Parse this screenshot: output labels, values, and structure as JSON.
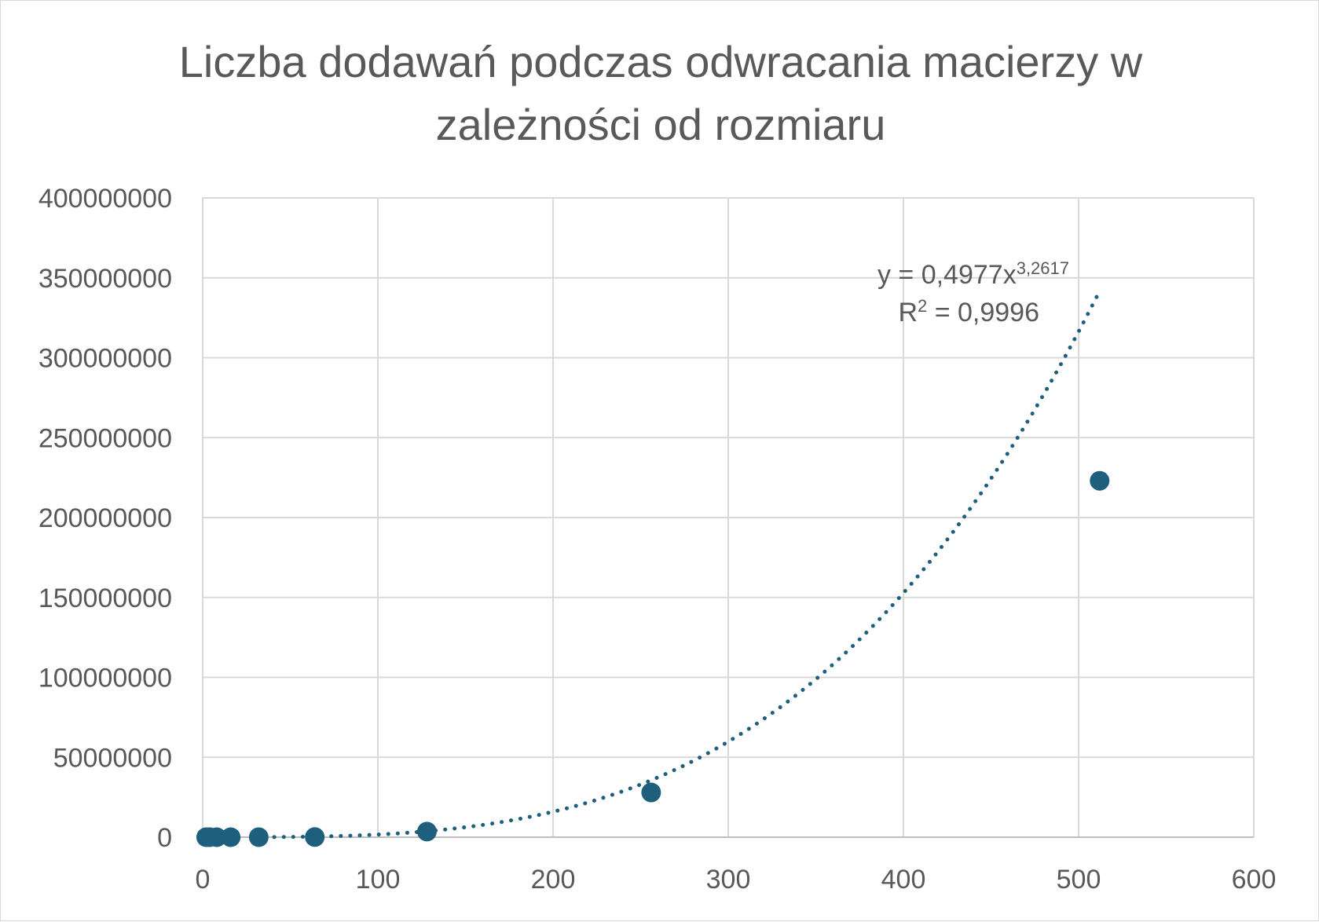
{
  "chart_data": {
    "type": "scatter",
    "title": "Liczba dodawań podczas odwracania macierzy w zależności od rozmiaru",
    "xlabel": "",
    "ylabel": "",
    "xlim": [
      0,
      600
    ],
    "ylim": [
      0,
      400000000
    ],
    "x_ticks": [
      "0",
      "100",
      "200",
      "300",
      "400",
      "500",
      "600"
    ],
    "y_ticks": [
      "0",
      "50000000",
      "100000000",
      "150000000",
      "200000000",
      "250000000",
      "300000000",
      "350000000",
      "400000000"
    ],
    "grid": true,
    "legend": "none",
    "series": [
      {
        "x": [
          2,
          4,
          8,
          16,
          32,
          64,
          128,
          256,
          512
        ],
        "y": [
          0,
          10,
          100,
          1000,
          10000,
          100000,
          3500000,
          28000000,
          223000000
        ],
        "color": "#1f5f7e"
      }
    ],
    "trendline": {
      "type": "power",
      "coefficient": 0.4977,
      "exponent": 3.2617,
      "x_range": [
        30,
        512
      ],
      "color": "#1f5f7e",
      "equation_text": "y = 0,4977x",
      "exponent_text": "3,2617",
      "r2_prefix": "R",
      "r2_sup": "2",
      "r2_value_text": " = 0,9996"
    }
  }
}
